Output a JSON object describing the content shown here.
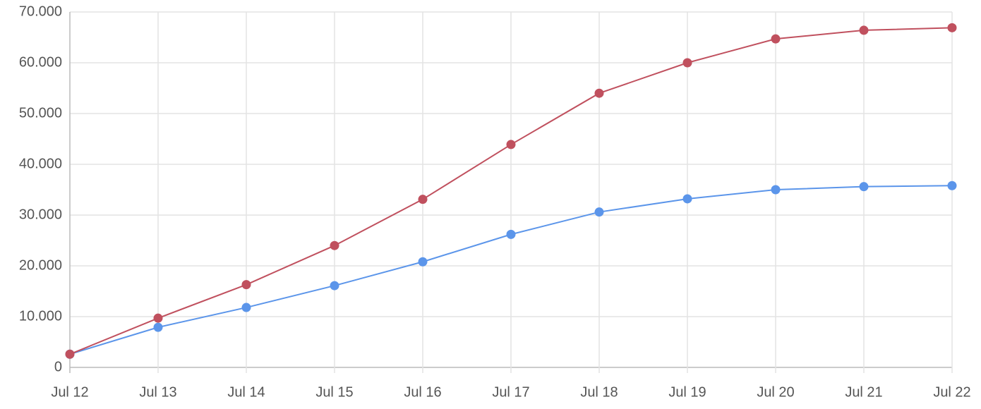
{
  "chart_data": {
    "type": "line",
    "categories": [
      "Jul 12",
      "Jul 13",
      "Jul 14",
      "Jul 15",
      "Jul 16",
      "Jul 17",
      "Jul 18",
      "Jul 19",
      "Jul 20",
      "Jul 21",
      "Jul 22"
    ],
    "series": [
      {
        "color": "#5b95ea",
        "values": [
          2600,
          7900,
          11800,
          16100,
          20800,
          26200,
          30600,
          33200,
          35000,
          35600,
          35800
        ]
      },
      {
        "color": "#c0505e",
        "values": [
          2600,
          9700,
          16300,
          24000,
          33100,
          43900,
          54000,
          60000,
          64700,
          66400,
          66900
        ]
      }
    ],
    "ylim": [
      0,
      70000
    ],
    "yticks": [
      0,
      {
        "value": 10000,
        "label": "10.000"
      },
      {
        "value": 20000,
        "label": "20.000"
      },
      {
        "value": 30000,
        "label": "30.000"
      },
      {
        "value": 40000,
        "label": "40.000"
      },
      {
        "value": 50000,
        "label": "50.000"
      },
      {
        "value": 60000,
        "label": "60.000"
      },
      {
        "value": 70000,
        "label": "70.000"
      }
    ],
    "grid": true
  }
}
